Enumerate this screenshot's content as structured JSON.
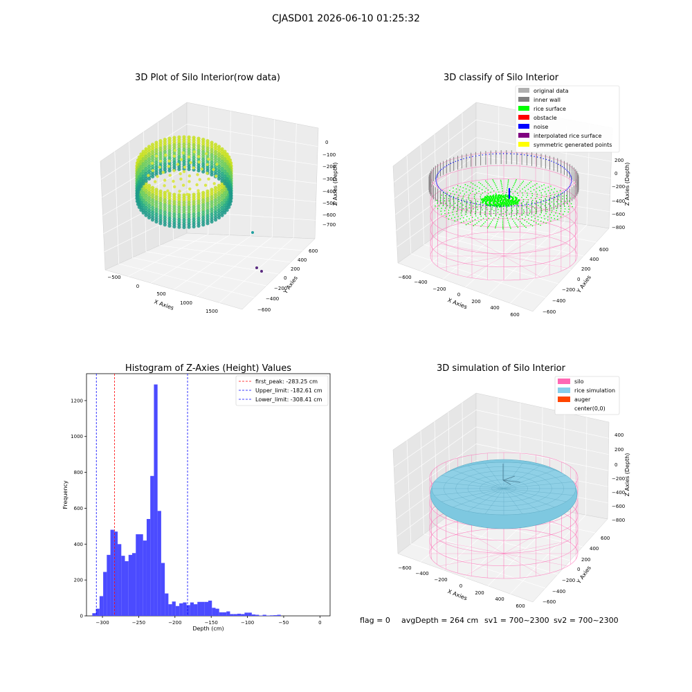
{
  "suptitle": "CJASD01 2026-06-10 01:25:32",
  "footer": {
    "flag": "flag = 0",
    "avg": "avgDepth = 264 cm",
    "sv1": "sv1 = 700~2300",
    "sv2": "sv2 = 700~2300"
  },
  "colors": {
    "pane_left": "#e6e6e6",
    "pane_right": "#ececec",
    "pane_floor": "#f2f2f2",
    "grid": "#ffffff",
    "silo": "#ff69b4",
    "rice_sim": "#7ec8e0",
    "auger": "#ff4500",
    "hist_bar": "#4b4bff",
    "rice_surface": "#00ff00",
    "noise": "#0000ff",
    "inner_wall": "#808080"
  },
  "chart_data": [
    {
      "type": "scatter",
      "title": "3D Plot of Silo Interior(row data)",
      "xlabel": "X Axies",
      "ylabel": "Y Axies",
      "zlabel": "Z Axies (Depth)",
      "xticks": [
        "−500",
        "0",
        "500",
        "1000",
        "1500"
      ],
      "yticks": [
        "−600",
        "−400",
        "−200",
        "0",
        "200",
        "400",
        "600"
      ],
      "zticks": [
        "0",
        "−100",
        "−200",
        "−300",
        "−400",
        "−500",
        "−600",
        "−700"
      ]
    },
    {
      "type": "scatter",
      "title": "3D classify of Silo Interior",
      "xlabel": "X Axies",
      "ylabel": "Y Axies",
      "zlabel": "Z Axies (Depth)",
      "xticks": [
        "−600",
        "−400",
        "−200",
        "0",
        "200",
        "400",
        "600"
      ],
      "yticks": [
        "−600",
        "−400",
        "−200",
        "0",
        "200",
        "400",
        "600"
      ],
      "zticks": [
        "200",
        "0",
        "−200",
        "−400",
        "−600",
        "−800"
      ],
      "legend": [
        {
          "name": "original data",
          "color": "#b0b0b0"
        },
        {
          "name": "inner wall",
          "color": "#808080"
        },
        {
          "name": "rice surface",
          "color": "#00ff00"
        },
        {
          "name": "obstacle",
          "color": "#ff0000"
        },
        {
          "name": "noise",
          "color": "#0000ff"
        },
        {
          "name": "interpolated rice surface",
          "color": "#800080"
        },
        {
          "name": "symmetric generated points",
          "color": "#ffff00"
        }
      ],
      "legend_position": "top-right"
    },
    {
      "type": "bar",
      "title": "Histogram of Z-Axies (Height) Values",
      "xlabel": "Depth (cm)",
      "ylabel": "Frequency",
      "xlim": [
        -322,
        14
      ],
      "ylim": [
        0,
        1350
      ],
      "xticks": [
        -300,
        -250,
        -200,
        -150,
        -100,
        -50,
        0
      ],
      "yticks": [
        0,
        200,
        400,
        600,
        800,
        1000,
        1200
      ],
      "bin_start": -314,
      "bin_width": 5,
      "values": [
        15,
        40,
        110,
        245,
        340,
        480,
        470,
        400,
        335,
        305,
        340,
        350,
        455,
        455,
        420,
        540,
        780,
        1290,
        585,
        295,
        125,
        65,
        80,
        55,
        70,
        75,
        60,
        75,
        65,
        78,
        78,
        78,
        85,
        45,
        40,
        20,
        20,
        25,
        10,
        10,
        12,
        10,
        18,
        18,
        8,
        6,
        2,
        6,
        2,
        3,
        4,
        6
      ],
      "vlines": [
        {
          "label": "first_peak: -283.25 cm",
          "x": -283.25,
          "color": "#ff0000"
        },
        {
          "label": "Upper_limit: -182.61 cm",
          "x": -182.61,
          "color": "#0000ff"
        },
        {
          "label": "Lower_limit: -308.41 cm",
          "x": -308.41,
          "color": "#0000ff"
        }
      ],
      "legend_position": "top-right"
    },
    {
      "type": "scatter",
      "title": "3D simulation of Silo Interior",
      "xlabel": "X Axies",
      "ylabel": "Y Axies",
      "zlabel": "Z Axies (Depth)",
      "xticks": [
        "−600",
        "−400",
        "−200",
        "0",
        "200",
        "400",
        "600"
      ],
      "yticks": [
        "−600",
        "−400",
        "−200",
        "0",
        "200",
        "400",
        "600"
      ],
      "zticks": [
        "400",
        "200",
        "0",
        "−200",
        "−400",
        "−600",
        "−800"
      ],
      "legend": [
        {
          "name": "silo",
          "color": "#ff69b4"
        },
        {
          "name": "rice simulation",
          "color": "#87ceeb"
        },
        {
          "name": "auger",
          "color": "#ff4500"
        },
        {
          "name": "center(0,0)",
          "color": "#ffffff"
        }
      ],
      "legend_position": "top-right"
    }
  ]
}
